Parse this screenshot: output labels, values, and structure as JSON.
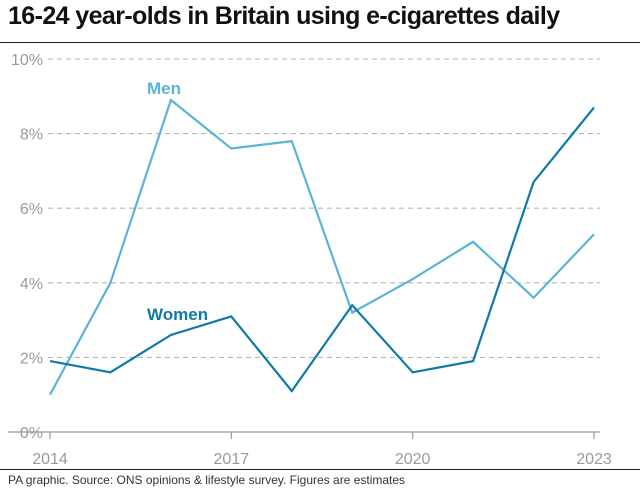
{
  "title": "16-24 year-olds in Britain using e-cigarettes daily",
  "footer": "PA graphic. Source: ONS opinions & lifestyle survey. Figures are estimates",
  "colors": {
    "men": "#5ab4d6",
    "women": "#0f7aa8",
    "grid": "#b5b5b5",
    "axis": "#9a9a9a"
  },
  "chart_data": {
    "type": "line",
    "title": "16-24 year-olds in Britain using e-cigarettes daily",
    "x": [
      2014,
      2015,
      2016,
      2017,
      2018,
      2019,
      2020,
      2021,
      2022,
      2023
    ],
    "x_tick_labels": [
      "2014",
      "2017",
      "2020",
      "2023"
    ],
    "x_ticks": [
      2014,
      2017,
      2020,
      2023
    ],
    "y_ticks": [
      0,
      2,
      4,
      6,
      8,
      10
    ],
    "y_tick_labels": [
      "0%",
      "2%",
      "4%",
      "6%",
      "8%",
      "10%"
    ],
    "ylim": [
      0,
      10
    ],
    "xlim": [
      2014,
      2023
    ],
    "grid": true,
    "series": [
      {
        "name": "Men",
        "values": [
          1.0,
          4.0,
          8.9,
          7.6,
          7.8,
          3.2,
          4.1,
          5.1,
          3.6,
          5.3
        ]
      },
      {
        "name": "Women",
        "values": [
          1.9,
          1.6,
          2.6,
          3.1,
          1.1,
          3.4,
          1.6,
          1.9,
          6.7,
          8.7
        ]
      }
    ]
  }
}
